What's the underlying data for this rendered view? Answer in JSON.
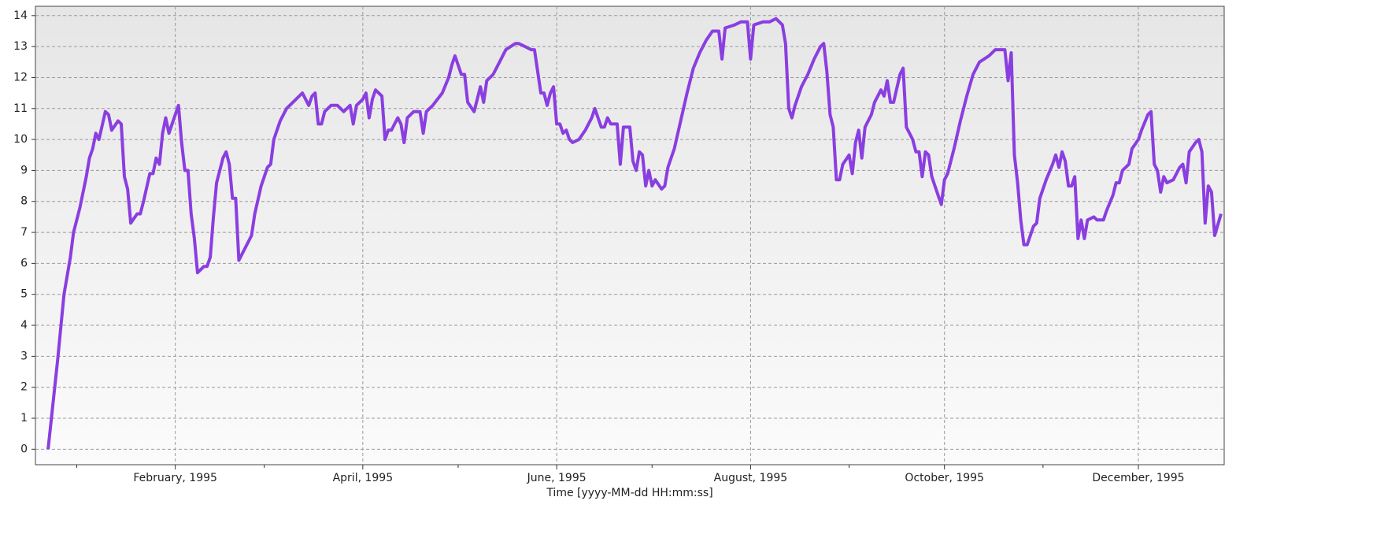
{
  "chart_data": {
    "type": "line",
    "x_label": "Time [yyyy-MM-dd HH:mm:ss]",
    "xlim": [
      "1994-12-19",
      "1995-12-28"
    ],
    "xticks": [
      {
        "value": "1995-02-01",
        "label": "February, 1995"
      },
      {
        "value": "1995-04-01",
        "label": "April, 1995"
      },
      {
        "value": "1995-06-01",
        "label": "June, 1995"
      },
      {
        "value": "1995-08-01",
        "label": "August, 1995"
      },
      {
        "value": "1995-10-01",
        "label": "October, 1995"
      },
      {
        "value": "1995-12-01",
        "label": "December, 1995"
      }
    ],
    "xminorticks": [
      "1995-01-01",
      "1995-03-01",
      "1995-05-01",
      "1995-07-01",
      "1995-09-01",
      "1995-11-01"
    ],
    "ylim": [
      -0.5,
      14.3
    ],
    "yticks": [
      0,
      1,
      2,
      3,
      4,
      5,
      6,
      7,
      8,
      9,
      10,
      11,
      12,
      13,
      14
    ],
    "grid": true,
    "series": [
      {
        "color": "#8a3ee0",
        "x": [
          "1994-12-23",
          "1994-12-26",
          "1994-12-28",
          "1994-12-30",
          "1994-12-31",
          "1995-01-02",
          "1995-01-04",
          "1995-01-05",
          "1995-01-06",
          "1995-01-07",
          "1995-01-08",
          "1995-01-10",
          "1995-01-11",
          "1995-01-12",
          "1995-01-14",
          "1995-01-15",
          "1995-01-16",
          "1995-01-17",
          "1995-01-18",
          "1995-01-20",
          "1995-01-21",
          "1995-01-22",
          "1995-01-24",
          "1995-01-25",
          "1995-01-26",
          "1995-01-27",
          "1995-01-28",
          "1995-01-29",
          "1995-01-30",
          "1995-01-31",
          "1995-02-02",
          "1995-02-03",
          "1995-02-04",
          "1995-02-05",
          "1995-02-06",
          "1995-02-07",
          "1995-02-08",
          "1995-02-10",
          "1995-02-11",
          "1995-02-12",
          "1995-02-13",
          "1995-02-14",
          "1995-02-16",
          "1995-02-17",
          "1995-02-18",
          "1995-02-19",
          "1995-02-20",
          "1995-02-21",
          "1995-02-23",
          "1995-02-25",
          "1995-02-26",
          "1995-02-28",
          "1995-03-02",
          "1995-03-03",
          "1995-03-04",
          "1995-03-06",
          "1995-03-08",
          "1995-03-10",
          "1995-03-12",
          "1995-03-13",
          "1995-03-15",
          "1995-03-16",
          "1995-03-17",
          "1995-03-18",
          "1995-03-19",
          "1995-03-20",
          "1995-03-22",
          "1995-03-24",
          "1995-03-26",
          "1995-03-28",
          "1995-03-29",
          "1995-03-30",
          "1995-04-01",
          "1995-04-02",
          "1995-04-03",
          "1995-04-04",
          "1995-04-05",
          "1995-04-07",
          "1995-04-08",
          "1995-04-09",
          "1995-04-10",
          "1995-04-11",
          "1995-04-12",
          "1995-04-13",
          "1995-04-14",
          "1995-04-15",
          "1995-04-17",
          "1995-04-19",
          "1995-04-20",
          "1995-04-21",
          "1995-04-23",
          "1995-04-26",
          "1995-04-28",
          "1995-04-29",
          "1995-04-30",
          "1995-05-02",
          "1995-05-03",
          "1995-05-04",
          "1995-05-06",
          "1995-05-07",
          "1995-05-08",
          "1995-05-09",
          "1995-05-10",
          "1995-05-12",
          "1995-05-14",
          "1995-05-16",
          "1995-05-19",
          "1995-05-20",
          "1995-05-22",
          "1995-05-24",
          "1995-05-25",
          "1995-05-27",
          "1995-05-28",
          "1995-05-29",
          "1995-05-30",
          "1995-05-31",
          "1995-06-01",
          "1995-06-02",
          "1995-06-03",
          "1995-06-04",
          "1995-06-05",
          "1995-06-06",
          "1995-06-08",
          "1995-06-10",
          "1995-06-12",
          "1995-06-13",
          "1995-06-15",
          "1995-06-16",
          "1995-06-17",
          "1995-06-18",
          "1995-06-20",
          "1995-06-21",
          "1995-06-22",
          "1995-06-24",
          "1995-06-25",
          "1995-06-26",
          "1995-06-27",
          "1995-06-28",
          "1995-06-29",
          "1995-06-30",
          "1995-07-01",
          "1995-07-02",
          "1995-07-04",
          "1995-07-05",
          "1995-07-06",
          "1995-07-08",
          "1995-07-10",
          "1995-07-12",
          "1995-07-14",
          "1995-07-16",
          "1995-07-18",
          "1995-07-20",
          "1995-07-22",
          "1995-07-23",
          "1995-07-24",
          "1995-07-27",
          "1995-07-29",
          "1995-07-31",
          "1995-08-01",
          "1995-08-02",
          "1995-08-05",
          "1995-08-07",
          "1995-08-09",
          "1995-08-11",
          "1995-08-12",
          "1995-08-13",
          "1995-08-14",
          "1995-08-15",
          "1995-08-17",
          "1995-08-19",
          "1995-08-21",
          "1995-08-23",
          "1995-08-24",
          "1995-08-25",
          "1995-08-26",
          "1995-08-27",
          "1995-08-28",
          "1995-08-29",
          "1995-08-30",
          "1995-09-01",
          "1995-09-02",
          "1995-09-03",
          "1995-09-04",
          "1995-09-05",
          "1995-09-06",
          "1995-09-08",
          "1995-09-09",
          "1995-09-11",
          "1995-09-12",
          "1995-09-13",
          "1995-09-14",
          "1995-09-15",
          "1995-09-17",
          "1995-09-18",
          "1995-09-19",
          "1995-09-20",
          "1995-09-21",
          "1995-09-22",
          "1995-09-23",
          "1995-09-24",
          "1995-09-25",
          "1995-09-26",
          "1995-09-27",
          "1995-09-28",
          "1995-09-29",
          "1995-09-30",
          "1995-10-01",
          "1995-10-02",
          "1995-10-04",
          "1995-10-06",
          "1995-10-08",
          "1995-10-10",
          "1995-10-12",
          "1995-10-15",
          "1995-10-17",
          "1995-10-20",
          "1995-10-21",
          "1995-10-22",
          "1995-10-23",
          "1995-10-24",
          "1995-10-25",
          "1995-10-26",
          "1995-10-27",
          "1995-10-29",
          "1995-10-30",
          "1995-10-31",
          "1995-11-02",
          "1995-11-04",
          "1995-11-05",
          "1995-11-06",
          "1995-11-07",
          "1995-11-08",
          "1995-11-09",
          "1995-11-10",
          "1995-11-11",
          "1995-11-12",
          "1995-11-13",
          "1995-11-14",
          "1995-11-15",
          "1995-11-17",
          "1995-11-18",
          "1995-11-20",
          "1995-11-21",
          "1995-11-23",
          "1995-11-24",
          "1995-11-25",
          "1995-11-26",
          "1995-11-28",
          "1995-11-29",
          "1995-12-01",
          "1995-12-02",
          "1995-12-04",
          "1995-12-05",
          "1995-12-06",
          "1995-12-07",
          "1995-12-08",
          "1995-12-09",
          "1995-12-10",
          "1995-12-12",
          "1995-12-14",
          "1995-12-15",
          "1995-12-16",
          "1995-12-17",
          "1995-12-19",
          "1995-12-20",
          "1995-12-21",
          "1995-12-22",
          "1995-12-23",
          "1995-12-24",
          "1995-12-25",
          "1995-12-27"
        ],
        "values": [
          0,
          2.9,
          5,
          6.2,
          7,
          7.8,
          8.8,
          9.4,
          9.7,
          10.2,
          10,
          10.9,
          10.8,
          10.3,
          10.6,
          10.5,
          8.8,
          8.4,
          7.3,
          7.6,
          7.6,
          8,
          8.9,
          8.9,
          9.4,
          9.2,
          10.2,
          10.7,
          10.2,
          10.5,
          11.1,
          9.9,
          9,
          9,
          7.6,
          6.8,
          5.7,
          5.9,
          5.9,
          6.2,
          7.5,
          8.6,
          9.4,
          9.6,
          9.2,
          8.1,
          8.1,
          6.1,
          6.5,
          6.9,
          7.6,
          8.5,
          9.1,
          9.2,
          10,
          10.6,
          11,
          11.2,
          11.4,
          11.5,
          11.1,
          11.4,
          11.5,
          10.5,
          10.5,
          10.9,
          11.1,
          11.1,
          10.9,
          11.1,
          10.5,
          11.1,
          11.3,
          11.5,
          10.7,
          11.3,
          11.6,
          11.4,
          10,
          10.3,
          10.3,
          10.5,
          10.7,
          10.5,
          9.9,
          10.7,
          10.9,
          10.9,
          10.2,
          10.9,
          11.1,
          11.5,
          12,
          12.4,
          12.7,
          12.1,
          12.1,
          11.2,
          10.9,
          11.3,
          11.7,
          11.2,
          11.9,
          12.1,
          12.5,
          12.9,
          13.1,
          13.1,
          13,
          12.9,
          12.9,
          11.5,
          11.5,
          11.1,
          11.5,
          11.7,
          10.5,
          10.5,
          10.2,
          10.3,
          10,
          9.9,
          10,
          10.3,
          10.7,
          11,
          10.4,
          10.4,
          10.7,
          10.5,
          10.5,
          9.2,
          10.4,
          10.4,
          9.3,
          9,
          9.6,
          9.5,
          8.5,
          9,
          8.5,
          8.7,
          8.4,
          8.5,
          9.1,
          9.7,
          10.6,
          11.5,
          12.3,
          12.8,
          13.2,
          13.5,
          13.5,
          12.6,
          13.6,
          13.7,
          13.8,
          13.8,
          12.6,
          13.7,
          13.8,
          13.8,
          13.9,
          13.7,
          13.1,
          11,
          10.7,
          11.1,
          11.7,
          12.1,
          12.6,
          13,
          13.1,
          12.2,
          10.8,
          10.4,
          8.7,
          8.7,
          9.2,
          9.5,
          8.9,
          9.9,
          10.3,
          9.4,
          10.4,
          10.8,
          11.2,
          11.6,
          11.4,
          11.9,
          11.2,
          11.2,
          12.1,
          12.3,
          10.4,
          10.2,
          10,
          9.6,
          9.6,
          8.8,
          9.6,
          9.5,
          8.8,
          8.5,
          8.2,
          7.9,
          8.7,
          8.9,
          9.7,
          10.6,
          11.4,
          12.1,
          12.5,
          12.7,
          12.9,
          12.9,
          11.9,
          12.8,
          9.5,
          8.6,
          7.4,
          6.6,
          6.6,
          7.2,
          7.3,
          8.1,
          8.7,
          9.2,
          9.5,
          9.1,
          9.6,
          9.3,
          8.5,
          8.5,
          8.8,
          6.8,
          7.4,
          6.8,
          7.4,
          7.5,
          7.4,
          7.4,
          7.7,
          8.2,
          8.6,
          8.6,
          9,
          9.2,
          9.7,
          10,
          10.3,
          10.8,
          10.9,
          9.2,
          9,
          8.3,
          8.8,
          8.6,
          8.7,
          9.1,
          9.2,
          8.6,
          9.6,
          9.9,
          10,
          9.6,
          7.3,
          8.5,
          8.3,
          6.9,
          7.6
        ]
      }
    ]
  }
}
